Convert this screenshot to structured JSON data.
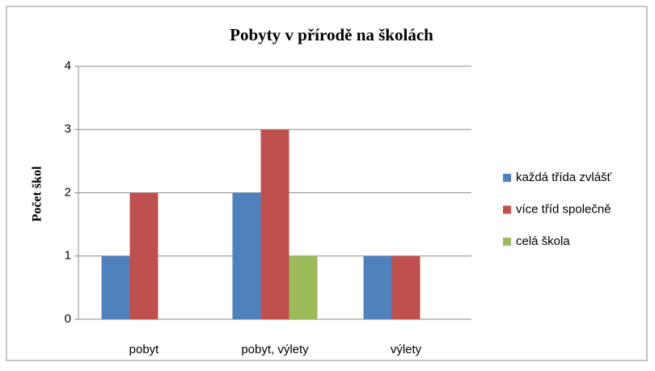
{
  "chart_data": {
    "type": "bar",
    "title": "Pobyty v přírodě na školách",
    "y_label": "Počet škol",
    "categories": [
      "pobyt",
      "pobyt, výlety",
      "výlety"
    ],
    "series": [
      {
        "name": "každá třída zvlášť",
        "color": "#4f81bd",
        "values": [
          1,
          2,
          1
        ]
      },
      {
        "name": "více tříd společně",
        "color": "#c0504d",
        "values": [
          2,
          3,
          1
        ]
      },
      {
        "name": "celá škola",
        "color": "#9bbb59",
        "values": [
          0,
          1,
          0
        ]
      }
    ],
    "ylim": [
      0,
      4
    ],
    "yticks": [
      0,
      1,
      2,
      3,
      4
    ],
    "grid": true,
    "legend": "right"
  }
}
